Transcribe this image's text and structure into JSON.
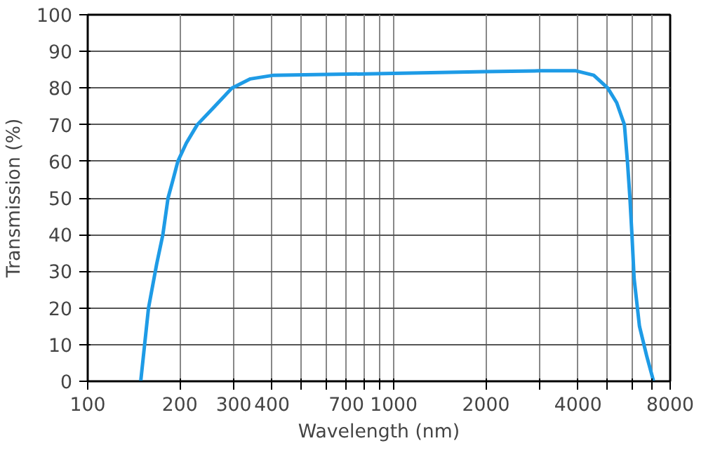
{
  "chart_data": {
    "type": "line",
    "xlabel": "Wavelength (nm)",
    "ylabel": "Transmission (%)",
    "log": "x",
    "grid": true,
    "marker": "none",
    "line_style": "solid",
    "xlim": [
      100,
      8000
    ],
    "ylim": [
      0,
      100
    ],
    "xticks": [
      100,
      200,
      300,
      400,
      {
        "value": 500,
        "label": null
      },
      {
        "value": 600,
        "label": null
      },
      700,
      {
        "value": 800,
        "label": null
      },
      {
        "value": 900,
        "label": null
      },
      1000,
      2000,
      {
        "value": 3000,
        "label": null
      },
      4000,
      {
        "value": 5000,
        "label": null
      },
      {
        "value": 6000,
        "label": null
      },
      {
        "value": 7000,
        "label": null
      },
      8000
    ],
    "yticks": [
      0,
      10,
      20,
      30,
      40,
      50,
      60,
      70,
      80,
      90,
      100
    ],
    "series": [
      {
        "color": "#1e9be6",
        "x": [
          149,
          158,
          168,
          176,
          183,
          190,
          197,
          210,
          228,
          260,
          296,
          340,
          405,
          600,
          1000,
          2000,
          3000,
          3935,
          4500,
          5000,
          5350,
          5670,
          5800,
          5910,
          6000,
          6100,
          6350,
          6700,
          7060
        ],
        "values": [
          0,
          20,
          32,
          40,
          50,
          55,
          60,
          65,
          70,
          75,
          80,
          82.5,
          83.5,
          83.7,
          84,
          84.5,
          84.7,
          84.7,
          83.5,
          80,
          76,
          70,
          60,
          50,
          40,
          28,
          15,
          7,
          0
        ]
      }
    ]
  }
}
